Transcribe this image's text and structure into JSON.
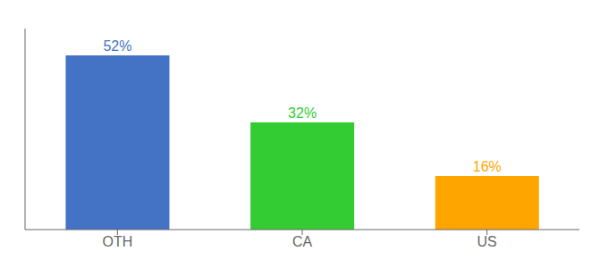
{
  "chart_data": {
    "type": "bar",
    "categories": [
      "OTH",
      "CA",
      "US"
    ],
    "values": [
      52,
      32,
      16
    ],
    "value_labels": [
      "52%",
      "32%",
      "16%"
    ],
    "colors": [
      "#4472C4",
      "#33CC33",
      "#FFA500"
    ],
    "ylim": [
      0,
      60
    ],
    "data_labels": true,
    "tick_labels": "x",
    "grid": false
  }
}
